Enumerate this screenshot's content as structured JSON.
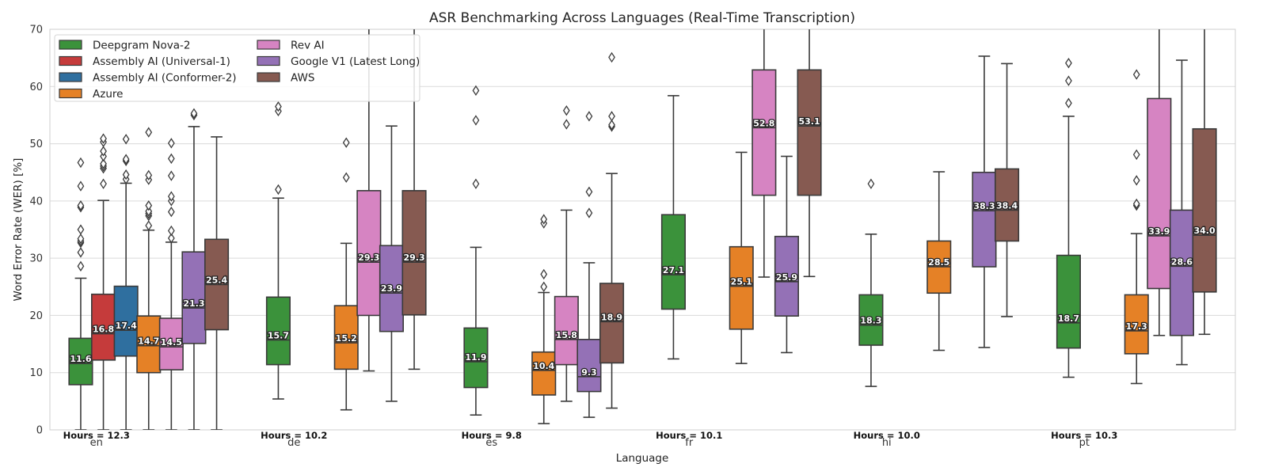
{
  "chart_data": {
    "type": "box",
    "title": "ASR Benchmarking Across Languages (Real-Time Transcription)",
    "xlabel": "Language",
    "ylabel": "Word Error Rate (WER) [%]",
    "ylim": [
      0,
      70
    ],
    "yticks": [
      0,
      10,
      20,
      30,
      40,
      50,
      60,
      70
    ],
    "grid": "horizontal",
    "legend": {
      "placement": "top-left",
      "columns": 2
    },
    "series": [
      {
        "name": "Deepgram Nova-2",
        "color": "#3b923b"
      },
      {
        "name": "Assembly AI (Universal-1)",
        "color": "#c53b3b"
      },
      {
        "name": "Assembly AI (Conformer-2)",
        "color": "#2f6f9f"
      },
      {
        "name": "Azure",
        "color": "#e58126"
      },
      {
        "name": "Rev AI",
        "color": "#d684c2"
      },
      {
        "name": "Google V1 (Latest Long)",
        "color": "#9471b6"
      },
      {
        "name": "AWS",
        "color": "#865a51"
      }
    ],
    "categories": [
      {
        "name": "en",
        "hours_label": "Hours = 12.3",
        "boxes": [
          {
            "series": 0,
            "whislo": 0,
            "q1": 7.9,
            "med": 11.6,
            "q3": 16.0,
            "whishi": 26.5,
            "label": "11.6",
            "fliers": [
              28.6,
              31.0,
              32.7,
              33.0,
              33.4,
              35.0,
              38.9,
              39.2,
              42.6,
              46.7
            ]
          },
          {
            "series": 1,
            "whislo": 0,
            "q1": 12.2,
            "med": 16.8,
            "q3": 23.7,
            "whishi": 40.1,
            "label": "16.8",
            "fliers": [
              43.0,
              45.7,
              46.1,
              46.5,
              47.8,
              48.7,
              50.3,
              50.9
            ]
          },
          {
            "series": 2,
            "whislo": 0,
            "q1": 12.9,
            "med": 17.4,
            "q3": 25.1,
            "whishi": 43.1,
            "label": "17.4",
            "fliers": [
              43.8,
              44.6,
              47.0,
              47.3,
              50.8
            ]
          },
          {
            "series": 3,
            "whislo": 0,
            "q1": 10.0,
            "med": 14.7,
            "q3": 19.9,
            "whishi": 34.9,
            "label": "14.7",
            "fliers": [
              35.7,
              37.4,
              37.8,
              38.2,
              39.2,
              43.7,
              44.5,
              52.0
            ]
          },
          {
            "series": 4,
            "whislo": 0,
            "q1": 10.5,
            "med": 14.5,
            "q3": 19.5,
            "whishi": 32.8,
            "label": "14.5",
            "fliers": [
              33.5,
              34.8,
              38.1,
              40.0,
              40.8,
              44.4,
              47.4,
              50.1
            ]
          },
          {
            "series": 5,
            "whislo": 0,
            "q1": 15.1,
            "med": 21.3,
            "q3": 31.1,
            "whishi": 53.0,
            "label": "21.3",
            "fliers": [
              55.0,
              55.3
            ]
          },
          {
            "series": 6,
            "whislo": 0,
            "q1": 17.5,
            "med": 25.4,
            "q3": 33.3,
            "whishi": 51.2,
            "label": "25.4",
            "fliers": []
          }
        ]
      },
      {
        "name": "de",
        "hours_label": "Hours = 10.2",
        "boxes": [
          {
            "series": 0,
            "whislo": 5.4,
            "q1": 11.4,
            "med": 15.7,
            "q3": 23.2,
            "whishi": 40.5,
            "label": "15.7",
            "fliers": [
              42.0,
              55.7,
              56.5
            ]
          },
          {
            "series": 3,
            "whislo": 3.5,
            "q1": 10.6,
            "med": 15.2,
            "q3": 21.7,
            "whishi": 32.6,
            "label": "15.2",
            "fliers": [
              44.1,
              50.2
            ]
          },
          {
            "series": 4,
            "whislo": 10.3,
            "q1": 20.0,
            "med": 29.3,
            "q3": 41.8,
            "whishi": 72,
            "label": "29.3",
            "fliers": []
          },
          {
            "series": 5,
            "whislo": 5.0,
            "q1": 17.2,
            "med": 23.9,
            "q3": 32.2,
            "whishi": 53.1,
            "label": "23.9",
            "fliers": []
          },
          {
            "series": 6,
            "whislo": 10.6,
            "q1": 20.1,
            "med": 29.3,
            "q3": 41.8,
            "whishi": 72,
            "label": "29.3",
            "fliers": []
          }
        ]
      },
      {
        "name": "es",
        "hours_label": "Hours = 9.8",
        "boxes": [
          {
            "series": 0,
            "whislo": 2.6,
            "q1": 7.4,
            "med": 11.9,
            "q3": 17.8,
            "whishi": 31.9,
            "label": "11.9",
            "fliers": [
              43.0,
              54.1,
              59.3
            ]
          },
          {
            "series": 3,
            "whislo": 1.1,
            "q1": 6.1,
            "med": 10.4,
            "q3": 13.6,
            "whishi": 24.0,
            "label": "10.4",
            "fliers": [
              25.0,
              27.2,
              36.1,
              36.8
            ]
          },
          {
            "series": 4,
            "whislo": 5.0,
            "q1": 11.4,
            "med": 15.8,
            "q3": 23.3,
            "whishi": 38.4,
            "label": "15.8",
            "fliers": [
              53.4,
              55.8
            ]
          },
          {
            "series": 5,
            "whislo": 2.2,
            "q1": 6.7,
            "med": 9.3,
            "q3": 15.8,
            "whishi": 29.2,
            "label": "9.3",
            "fliers": [
              37.9,
              41.6,
              54.8
            ]
          },
          {
            "series": 6,
            "whislo": 3.8,
            "q1": 11.7,
            "med": 18.9,
            "q3": 25.6,
            "whishi": 44.8,
            "label": "18.9",
            "fliers": [
              53.0,
              53.3,
              54.8,
              65.1
            ]
          }
        ]
      },
      {
        "name": "fr",
        "hours_label": "Hours = 10.1",
        "boxes": [
          {
            "series": 0,
            "whislo": 12.4,
            "q1": 21.1,
            "med": 27.1,
            "q3": 37.6,
            "whishi": 58.4,
            "label": "27.1",
            "fliers": []
          },
          {
            "series": 3,
            "whislo": 11.6,
            "q1": 17.6,
            "med": 25.1,
            "q3": 32.0,
            "whishi": 48.5,
            "label": "25.1",
            "fliers": []
          },
          {
            "series": 4,
            "whislo": 26.7,
            "q1": 41.0,
            "med": 52.8,
            "q3": 62.9,
            "whishi": 72,
            "label": "52.8",
            "fliers": []
          },
          {
            "series": 5,
            "whislo": 13.5,
            "q1": 19.9,
            "med": 25.9,
            "q3": 33.8,
            "whishi": 47.8,
            "label": "25.9",
            "fliers": []
          },
          {
            "series": 6,
            "whislo": 26.8,
            "q1": 41.0,
            "med": 53.1,
            "q3": 62.9,
            "whishi": 72,
            "label": "53.1",
            "fliers": []
          }
        ]
      },
      {
        "name": "hi",
        "hours_label": "Hours = 10.0",
        "boxes": [
          {
            "series": 0,
            "whislo": 7.6,
            "q1": 14.8,
            "med": 18.3,
            "q3": 23.6,
            "whishi": 34.2,
            "label": "18.3",
            "fliers": [
              43.0
            ]
          },
          {
            "series": 3,
            "whislo": 13.9,
            "q1": 23.9,
            "med": 28.5,
            "q3": 33.0,
            "whishi": 45.1,
            "label": "28.5",
            "fliers": []
          },
          {
            "series": 5,
            "whislo": 14.4,
            "q1": 28.5,
            "med": 38.3,
            "q3": 45.0,
            "whishi": 65.3,
            "label": "38.3",
            "fliers": []
          },
          {
            "series": 6,
            "whislo": 19.8,
            "q1": 33.0,
            "med": 38.4,
            "q3": 45.6,
            "whishi": 64.0,
            "label": "38.4",
            "fliers": []
          }
        ]
      },
      {
        "name": "pt",
        "hours_label": "Hours = 10.3",
        "boxes": [
          {
            "series": 0,
            "whislo": 9.2,
            "q1": 14.3,
            "med": 18.7,
            "q3": 30.5,
            "whishi": 54.8,
            "label": "18.7",
            "fliers": [
              57.1,
              61.0,
              64.1
            ]
          },
          {
            "series": 3,
            "whislo": 8.1,
            "q1": 13.3,
            "med": 17.3,
            "q3": 23.6,
            "whishi": 34.3,
            "label": "17.3",
            "fliers": [
              39.2,
              39.5,
              43.6,
              48.1,
              62.1
            ]
          },
          {
            "series": 4,
            "whislo": 16.5,
            "q1": 24.7,
            "med": 33.9,
            "q3": 57.9,
            "whishi": 72,
            "label": "33.9",
            "fliers": []
          },
          {
            "series": 5,
            "whislo": 11.4,
            "q1": 16.5,
            "med": 28.6,
            "q3": 38.4,
            "whishi": 64.6,
            "label": "28.6",
            "fliers": []
          },
          {
            "series": 6,
            "whislo": 16.7,
            "q1": 24.1,
            "med": 34.0,
            "q3": 52.6,
            "whishi": 72,
            "label": "34.0",
            "fliers": []
          }
        ]
      }
    ]
  }
}
